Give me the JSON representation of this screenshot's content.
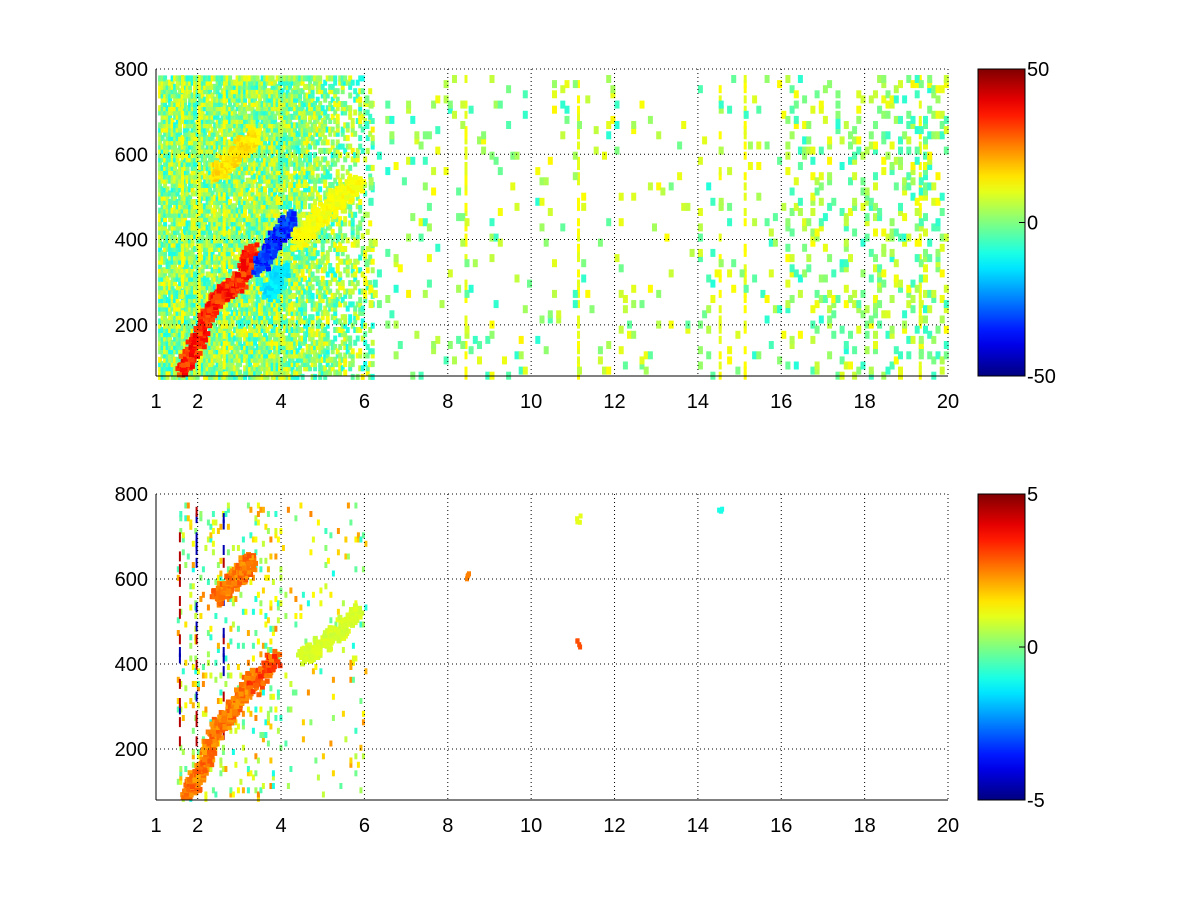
{
  "chart_data": [
    {
      "type": "heatmap",
      "title": "",
      "xlabel": "",
      "ylabel": "",
      "xlim": [
        1,
        20
      ],
      "ylim": [
        80,
        800
      ],
      "xticks": [
        1,
        2,
        4,
        6,
        8,
        10,
        12,
        14,
        16,
        18,
        20
      ],
      "xtick_labels": [
        "1",
        "2",
        "4",
        "6",
        "8",
        "10",
        "12",
        "14",
        "16",
        "18",
        "20"
      ],
      "yticks": [
        200,
        400,
        600,
        800
      ],
      "ytick_labels": [
        "200",
        "400",
        "600",
        "800"
      ],
      "grid": "dotted",
      "colormap": "jet",
      "colorbar": {
        "min": -50,
        "max": 50,
        "ticks": [
          50,
          0,
          -50
        ],
        "tick_labels": [
          "50",
          "0",
          "-50"
        ]
      },
      "features": [
        {
          "kind": "ridge",
          "points": [
            [
              1.6,
              100
            ],
            [
              2.0,
              180
            ],
            [
              2.4,
              270
            ],
            [
              2.9,
              300
            ],
            [
              3.3,
              380
            ]
          ],
          "value": 40
        },
        {
          "kind": "ridge",
          "points": [
            [
              2.4,
              560
            ],
            [
              2.9,
              610
            ],
            [
              3.3,
              650
            ]
          ],
          "value": 18
        },
        {
          "kind": "ridge",
          "points": [
            [
              3.4,
              340
            ],
            [
              3.8,
              400
            ],
            [
              4.2,
              460
            ]
          ],
          "value": -38
        },
        {
          "kind": "ridge",
          "points": [
            [
              3.6,
              280
            ],
            [
              4.0,
              330
            ]
          ],
          "value": -18
        },
        {
          "kind": "ridge",
          "points": [
            [
              4.3,
              400
            ],
            [
              4.8,
              450
            ],
            [
              5.3,
              500
            ],
            [
              5.8,
              540
            ]
          ],
          "value": 14
        }
      ]
    },
    {
      "type": "heatmap",
      "title": "",
      "xlabel": "",
      "ylabel": "",
      "xlim": [
        1,
        20
      ],
      "ylim": [
        80,
        800
      ],
      "xticks": [
        1,
        2,
        4,
        6,
        8,
        10,
        12,
        14,
        16,
        18,
        20
      ],
      "xtick_labels": [
        "1",
        "2",
        "4",
        "6",
        "8",
        "10",
        "12",
        "14",
        "16",
        "18",
        "20"
      ],
      "yticks": [
        200,
        400,
        600,
        800
      ],
      "ytick_labels": [
        "200",
        "400",
        "600",
        "800"
      ],
      "grid": "dotted",
      "colormap": "jet",
      "colorbar": {
        "min": -5,
        "max": 5,
        "ticks": [
          5,
          0,
          -5
        ],
        "tick_labels": [
          "5",
          "0",
          "-5"
        ]
      },
      "features": [
        {
          "kind": "ridge",
          "points": [
            [
              1.7,
              100
            ],
            [
              2.1,
              170
            ],
            [
              2.4,
              250
            ],
            [
              2.8,
              300
            ],
            [
              3.3,
              380
            ]
          ],
          "value": 3
        },
        {
          "kind": "ridge",
          "points": [
            [
              2.4,
              560
            ],
            [
              2.9,
              610
            ],
            [
              3.2,
              650
            ]
          ],
          "value": 3
        },
        {
          "kind": "ridge",
          "points": [
            [
              3.3,
              350
            ],
            [
              3.8,
              420
            ]
          ],
          "value": 3.5
        },
        {
          "kind": "ridge",
          "points": [
            [
              4.5,
              420
            ],
            [
              5.2,
              470
            ],
            [
              5.8,
              530
            ]
          ],
          "value": 1
        },
        {
          "kind": "spot",
          "points": [
            [
              8.45,
              600
            ]
          ],
          "value": 2.5
        },
        {
          "kind": "spot",
          "points": [
            [
              11.1,
              450
            ]
          ],
          "value": 3
        },
        {
          "kind": "spot",
          "points": [
            [
              11.1,
              750
            ]
          ],
          "value": 1
        },
        {
          "kind": "spot",
          "points": [
            [
              14.5,
              780
            ]
          ],
          "value": -1
        }
      ]
    }
  ]
}
